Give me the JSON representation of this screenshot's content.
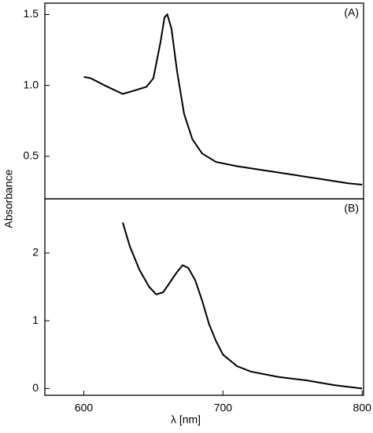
{
  "xlabel": "λ [nm]",
  "ylabel": "Absorbance",
  "chart_data": [
    {
      "type": "line",
      "panel_label": "(A)",
      "color": "#000000",
      "x": [
        600,
        605,
        615,
        628,
        635,
        645,
        650,
        655,
        658,
        660,
        663,
        667,
        672,
        678,
        685,
        695,
        710,
        730,
        750,
        770,
        790,
        800
      ],
      "values": [
        1.06,
        1.05,
        1.0,
        0.94,
        0.96,
        0.99,
        1.05,
        1.3,
        1.48,
        1.5,
        1.4,
        1.1,
        0.8,
        0.62,
        0.52,
        0.46,
        0.43,
        0.4,
        0.37,
        0.34,
        0.31,
        0.3
      ],
      "xlim": [
        572,
        801
      ],
      "ylim": [
        0.2,
        1.58
      ],
      "yticks": [
        0.5,
        {
          "value": 1.0,
          "label": "1.0"
        },
        1.5
      ]
    },
    {
      "type": "line",
      "panel_label": "(B)",
      "color": "#000000",
      "x": [
        628,
        633,
        640,
        647,
        652,
        657,
        662,
        667,
        671,
        675,
        680,
        685,
        690,
        695,
        700,
        710,
        720,
        740,
        760,
        780,
        800
      ],
      "values": [
        2.45,
        2.1,
        1.75,
        1.5,
        1.39,
        1.42,
        1.57,
        1.72,
        1.82,
        1.78,
        1.6,
        1.3,
        0.95,
        0.7,
        0.5,
        0.33,
        0.25,
        0.17,
        0.12,
        0.05,
        0.0
      ],
      "xlim": [
        572,
        801
      ],
      "ylim": [
        -0.1,
        2.8
      ],
      "yticks": [
        0,
        1,
        2
      ],
      "xticks": [
        600,
        700,
        800
      ]
    }
  ]
}
